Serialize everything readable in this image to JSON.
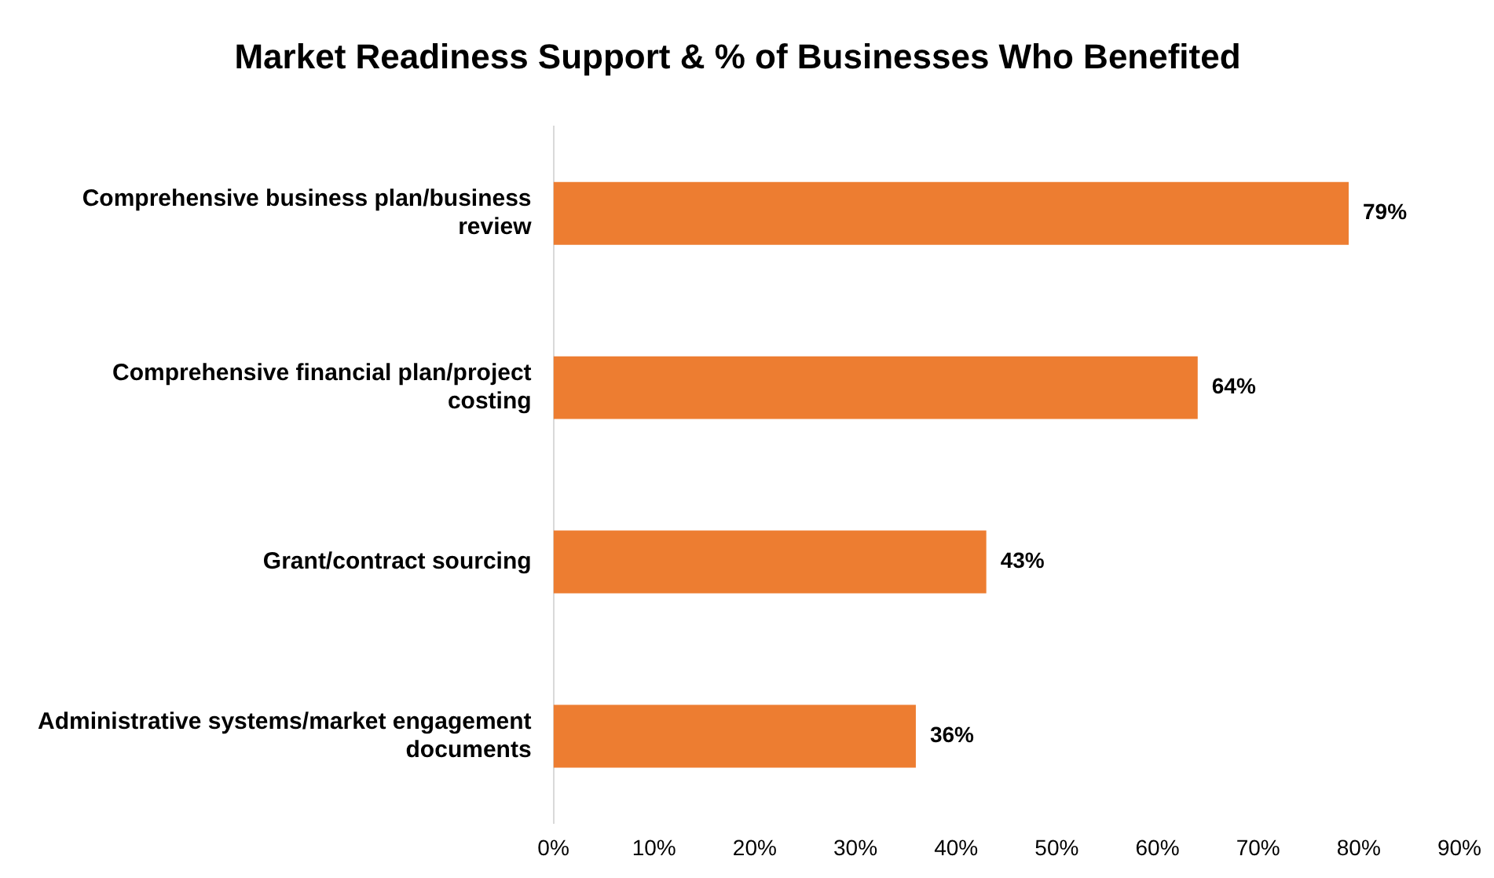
{
  "chart_data": {
    "type": "bar",
    "orientation": "horizontal",
    "title": "Market Readiness Support & % of Businesses Who Benefited",
    "categories": [
      "Comprehensive business plan/business review",
      "Comprehensive financial plan/project costing",
      "Grant/contract sourcing",
      "Administrative systems/market engagement documents"
    ],
    "values": [
      79,
      64,
      43,
      36
    ],
    "value_labels": [
      "79%",
      "64%",
      "43%",
      "36%"
    ],
    "color": "#ed7d31",
    "xlim": [
      0,
      90
    ],
    "xticks": [
      {
        "value": 0,
        "label": "0%"
      },
      {
        "value": 10,
        "label": "10%"
      },
      {
        "value": 20,
        "label": "20%"
      },
      {
        "value": 30,
        "label": "30%"
      },
      {
        "value": 40,
        "label": "40%"
      },
      {
        "value": 50,
        "label": "50%"
      },
      {
        "value": 60,
        "label": "60%"
      },
      {
        "value": 70,
        "label": "70%"
      },
      {
        "value": 80,
        "label": "80%"
      },
      {
        "value": 90,
        "label": "90%"
      }
    ],
    "grid": false,
    "legend": false
  }
}
